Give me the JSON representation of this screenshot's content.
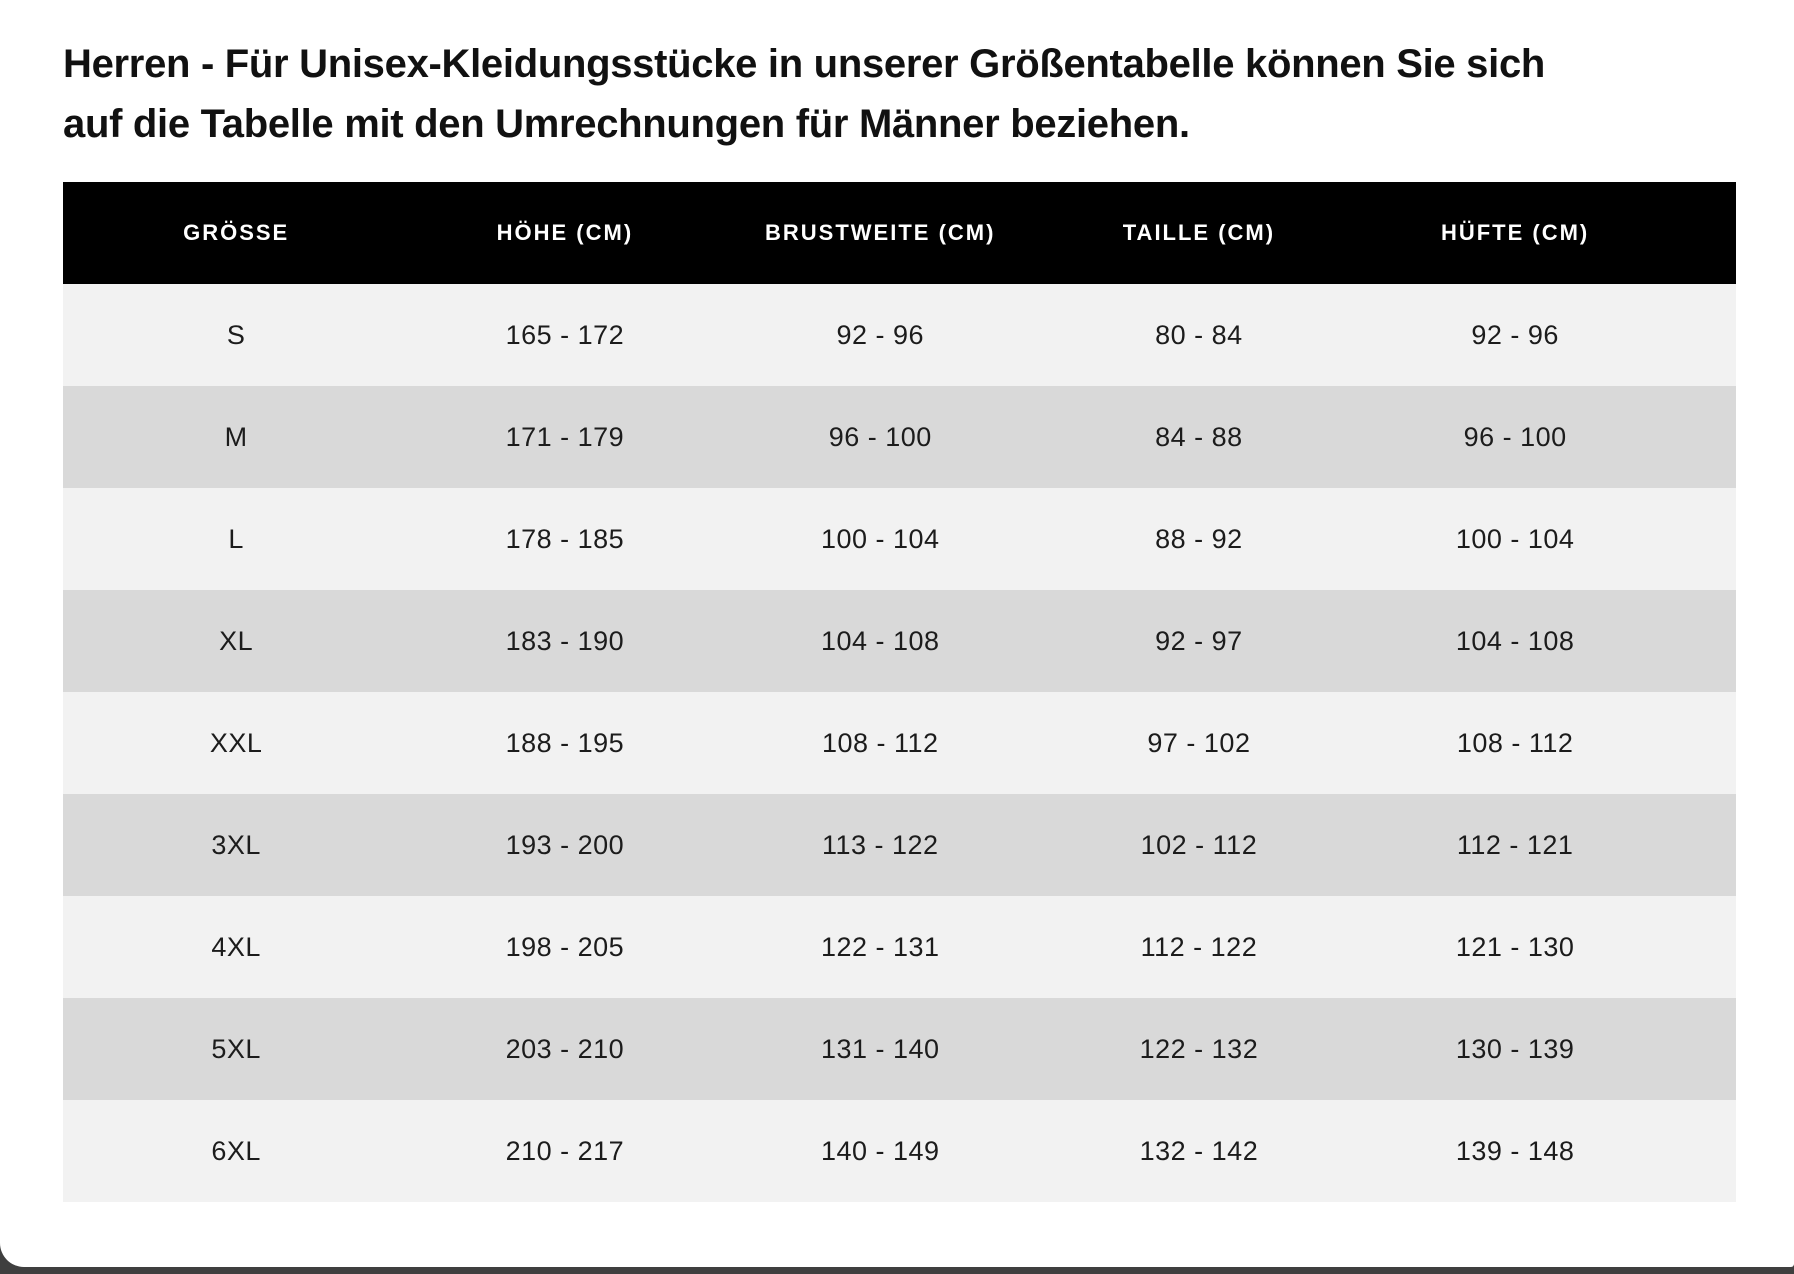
{
  "colors": {
    "page_background": "#3f3f3f",
    "card_background": "#ffffff",
    "header_background": "#000000",
    "header_text": "#ffffff",
    "row_light": "#f2f2f2",
    "row_dark": "#d9d9d9",
    "heading_text": "#111111",
    "cell_text": "#1c1c1c"
  },
  "intro": {
    "text": "Herren - Für Unisex-Kleidungsstücke in unserer Größentabelle können Sie sich auf die Tabelle mit den Umrechnungen für Männer beziehen."
  },
  "size_table": {
    "columns": [
      "GRÖSSE",
      "HÖHE (CM)",
      "BRUSTWEITE (CM)",
      "TAILLE (CM)",
      "HÜFTE (CM)"
    ],
    "rows": [
      [
        "S",
        "165 - 172",
        "92 - 96",
        "80 - 84",
        "92 - 96"
      ],
      [
        "M",
        "171 - 179",
        "96 - 100",
        "84 - 88",
        "96 - 100"
      ],
      [
        "L",
        "178 - 185",
        "100 - 104",
        "88 - 92",
        "100 - 104"
      ],
      [
        "XL",
        "183 - 190",
        "104 - 108",
        "92 - 97",
        "104 - 108"
      ],
      [
        "XXL",
        "188 - 195",
        "108 - 112",
        "97 - 102",
        "108 - 112"
      ],
      [
        "3XL",
        "193 - 200",
        "113 - 122",
        "102 - 112",
        "112 - 121"
      ],
      [
        "4XL",
        "198 - 205",
        "122 - 131",
        "112 - 122",
        "121 - 130"
      ],
      [
        "5XL",
        "203 - 210",
        "131 - 140",
        "122 - 132",
        "130 - 139"
      ],
      [
        "6XL",
        "210 - 217",
        "140 - 149",
        "132 - 142",
        "139 - 148"
      ]
    ]
  }
}
